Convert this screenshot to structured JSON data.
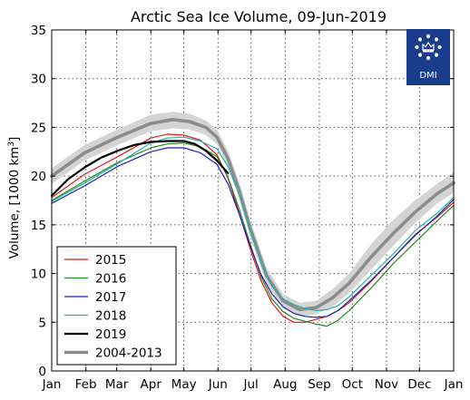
{
  "chart_data": {
    "type": "line",
    "title": "Arctic Sea Ice Volume, 09-Jun-2019",
    "xlabel": "",
    "ylabel": "Volume, [1000 km³]",
    "ylabel_main": "Volume, [1000 km",
    "ylabel_sup": "3",
    "ylabel_end": "]",
    "ylim": [
      0,
      35
    ],
    "yticks": [
      0,
      5,
      10,
      15,
      20,
      25,
      30,
      35
    ],
    "xlim": [
      0,
      365
    ],
    "xticks": [
      {
        "day": 0,
        "label": "Jan"
      },
      {
        "day": 31,
        "label": "Feb"
      },
      {
        "day": 59,
        "label": "Mar"
      },
      {
        "day": 90,
        "label": "Apr"
      },
      {
        "day": 120,
        "label": "May"
      },
      {
        "day": 151,
        "label": "Jun"
      },
      {
        "day": 181,
        "label": "Jul"
      },
      {
        "day": 212,
        "label": "Aug"
      },
      {
        "day": 243,
        "label": "Sep"
      },
      {
        "day": 273,
        "label": "Oct"
      },
      {
        "day": 304,
        "label": "Nov"
      },
      {
        "day": 334,
        "label": "Dec"
      },
      {
        "day": 365,
        "label": "Jan"
      }
    ],
    "grid": true,
    "legend_position": "bottom-left",
    "logo_text": "DMI",
    "band": {
      "x": [
        0,
        30,
        60,
        90,
        110,
        125,
        140,
        150,
        160,
        170,
        180,
        195,
        210,
        225,
        240,
        255,
        270,
        290,
        310,
        330,
        350,
        365
      ],
      "low": [
        19.2,
        21.6,
        23.2,
        24.6,
        24.9,
        24.8,
        24.2,
        23.3,
        21.0,
        17.8,
        13.8,
        9.0,
        6.4,
        5.6,
        5.8,
        6.6,
        8.0,
        10.4,
        12.8,
        15.2,
        17.2,
        18.3
      ],
      "high": [
        20.8,
        23.2,
        24.8,
        26.3,
        26.6,
        26.4,
        25.7,
        24.8,
        22.6,
        19.5,
        15.6,
        10.6,
        7.9,
        7.0,
        7.2,
        8.4,
        10.0,
        13.0,
        15.5,
        17.5,
        19.2,
        20.4
      ]
    },
    "series": [
      {
        "name": "2015",
        "color": "#e41a1c",
        "width": 1.2,
        "x": [
          0,
          30,
          60,
          90,
          105,
          120,
          135,
          150,
          160,
          170,
          180,
          190,
          200,
          210,
          220,
          230,
          240,
          250,
          260,
          270,
          290,
          310,
          330,
          350,
          365
        ],
        "y": [
          17.8,
          20.2,
          22.0,
          23.9,
          24.3,
          24.2,
          23.7,
          22.2,
          19.8,
          16.3,
          12.6,
          9.3,
          7.0,
          5.6,
          5.0,
          5.0,
          5.3,
          5.6,
          6.2,
          7.0,
          9.2,
          11.6,
          14.0,
          15.8,
          17.3
        ]
      },
      {
        "name": "2016",
        "color": "#228b22",
        "width": 1.2,
        "x": [
          0,
          30,
          60,
          90,
          105,
          120,
          135,
          150,
          160,
          170,
          180,
          190,
          200,
          210,
          220,
          230,
          240,
          250,
          260,
          270,
          290,
          310,
          330,
          350,
          365
        ],
        "y": [
          17.5,
          19.5,
          21.4,
          22.9,
          23.3,
          23.4,
          23.0,
          22.0,
          19.9,
          16.7,
          13.1,
          9.7,
          7.4,
          6.1,
          5.4,
          5.1,
          4.8,
          4.6,
          5.2,
          6.2,
          8.5,
          11.0,
          13.2,
          15.4,
          17.0
        ]
      },
      {
        "name": "2017",
        "color": "#1f1fb4",
        "width": 1.2,
        "x": [
          0,
          30,
          60,
          90,
          105,
          120,
          135,
          150,
          160,
          170,
          180,
          190,
          200,
          210,
          220,
          230,
          240,
          250,
          260,
          270,
          290,
          310,
          330,
          350,
          365
        ],
        "y": [
          17.2,
          19.0,
          21.0,
          22.5,
          22.9,
          22.9,
          22.4,
          21.2,
          19.2,
          16.2,
          12.9,
          9.9,
          7.9,
          6.6,
          5.9,
          5.6,
          5.5,
          5.6,
          6.2,
          7.2,
          9.3,
          11.6,
          13.9,
          15.9,
          17.6
        ]
      },
      {
        "name": "2018",
        "color": "#20b2aa",
        "width": 1.2,
        "x": [
          0,
          30,
          60,
          90,
          105,
          120,
          135,
          150,
          160,
          170,
          180,
          190,
          200,
          210,
          220,
          230,
          240,
          250,
          260,
          270,
          290,
          310,
          330,
          350,
          365
        ],
        "y": [
          17.4,
          19.3,
          21.3,
          23.4,
          23.9,
          24.0,
          23.6,
          22.8,
          21.0,
          18.2,
          14.6,
          11.1,
          8.7,
          7.4,
          6.8,
          6.4,
          6.2,
          6.3,
          6.7,
          7.6,
          9.8,
          12.0,
          14.4,
          16.2,
          17.8
        ]
      },
      {
        "name": "2019",
        "color": "#000000",
        "width": 2.2,
        "x": [
          0,
          15,
          30,
          45,
          60,
          75,
          90,
          105,
          120,
          130,
          140,
          150,
          160
        ],
        "y": [
          18.0,
          19.7,
          20.9,
          21.9,
          22.6,
          23.2,
          23.5,
          23.6,
          23.6,
          23.3,
          22.6,
          21.6,
          20.3
        ]
      },
      {
        "name": "2004-2013",
        "color": "#8c8c8c",
        "width": 3.6,
        "x": [
          0,
          30,
          60,
          90,
          110,
          125,
          140,
          150,
          160,
          170,
          180,
          195,
          210,
          225,
          240,
          255,
          270,
          290,
          310,
          330,
          350,
          365
        ],
        "y": [
          20.0,
          22.4,
          24.0,
          25.4,
          25.8,
          25.6,
          25.0,
          24.0,
          21.8,
          18.6,
          14.7,
          9.8,
          7.2,
          6.3,
          6.5,
          7.5,
          9.0,
          11.7,
          14.1,
          16.3,
          18.2,
          19.3
        ]
      }
    ]
  }
}
